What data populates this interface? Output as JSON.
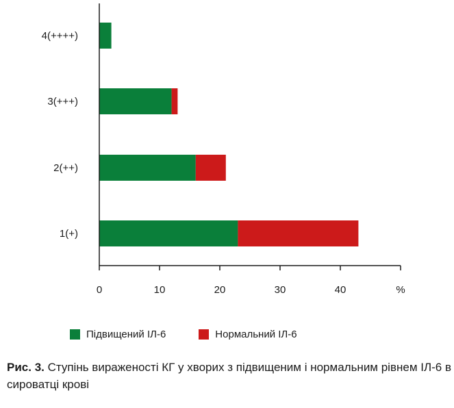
{
  "chart_data": {
    "type": "bar",
    "orientation": "horizontal",
    "stacked": true,
    "categories": [
      "1(+)",
      "2(++)",
      "3(+++)",
      "4(++++)"
    ],
    "series": [
      {
        "name": "Підвищений ІЛ-6",
        "values": [
          23,
          16,
          12,
          2
        ],
        "color": "#0a7f3a"
      },
      {
        "name": "Нормальний ІЛ-6",
        "values": [
          20,
          5,
          1,
          0
        ],
        "color": "#cc1a1a"
      }
    ],
    "x_ticks": [
      0,
      10,
      20,
      30,
      40
    ],
    "x_unit": "%",
    "xlim": [
      0,
      50
    ],
    "grid": false,
    "legend_position": "bottom"
  },
  "caption": {
    "label": "Рис. 3.",
    "text": " Ступінь вираженості КГ у хворих з підвищеним і нормальним рівнем ІЛ-6 в сироватці крові"
  }
}
